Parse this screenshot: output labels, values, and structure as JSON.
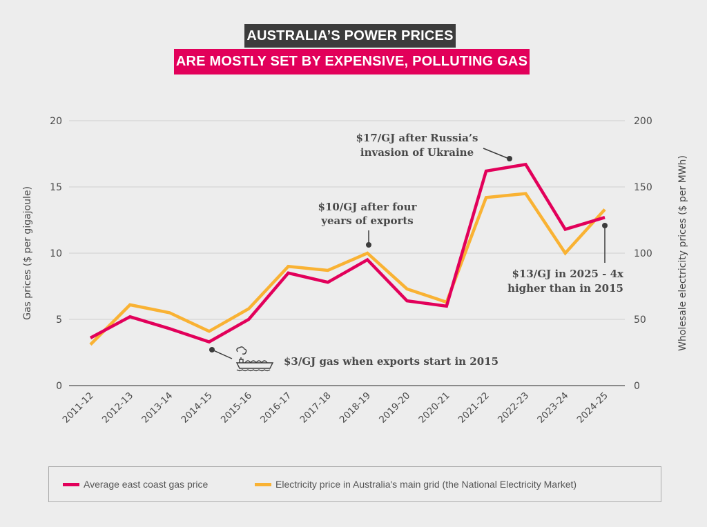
{
  "title": {
    "line1": "AUSTRALIA’S POWER PRICES",
    "line2": "ARE MOSTLY SET BY EXPENSIVE, POLLUTING GAS"
  },
  "colors": {
    "gas": "#e2005a",
    "electricity": "#f9b233",
    "title_dark": "#3c3c3c",
    "title_pink": "#e2005a",
    "text": "#4a4a4a",
    "grid": "#cfcfcf"
  },
  "legend": {
    "gas_label": "Average east coast gas price",
    "electricity_label": "Electricity price in Australia's main grid (the National Electricity Market)"
  },
  "annotations": {
    "exports_start": "$3/GJ gas when exports start in 2015",
    "four_years_line1": "$10/GJ after four",
    "four_years_line2": "years of exports",
    "russia_line1": "$17/GJ after Russia’s",
    "russia_line2": "invasion of Ukraine",
    "in_2025_line1": "$13/GJ in 2025 - 4x",
    "in_2025_line2": "higher than in 2015",
    "ship_icon": "lng-tanker-ship-icon"
  },
  "chart_data": {
    "type": "line",
    "title": "AUSTRALIA’S POWER PRICES ARE MOSTLY SET BY EXPENSIVE, POLLUTING GAS",
    "categories": [
      "2011-12",
      "2012-13",
      "2013-14",
      "2014-15",
      "2015-16",
      "2016-17",
      "2017-18",
      "2018-19",
      "2019-20",
      "2020-21",
      "2021-22",
      "2022-23",
      "2023-24",
      "2024-25"
    ],
    "ylabel": "Gas prices ($ per gigajoule)",
    "y2label": "Wholesale electricity prices ($ per MWh)",
    "xlabel": "",
    "ylim": [
      0,
      20
    ],
    "y2lim": [
      0,
      200
    ],
    "yticks": [
      "0",
      "5",
      "10",
      "15",
      "20"
    ],
    "y2ticks": [
      "0",
      "50",
      "100",
      "150",
      "200"
    ],
    "grid": true,
    "legend_position": "bottom",
    "series": [
      {
        "name": "Average east coast gas price",
        "axis": "left",
        "values": [
          3.6,
          5.2,
          4.3,
          3.3,
          5.0,
          8.5,
          7.8,
          9.5,
          6.4,
          6.0,
          16.2,
          16.7,
          11.8,
          12.7
        ]
      },
      {
        "name": "Electricity price in Australia's main grid (the National Electricity Market)",
        "axis": "right",
        "values": [
          31,
          61,
          55,
          41,
          58,
          90,
          87,
          100,
          73,
          63,
          142,
          145,
          100,
          133
        ]
      }
    ]
  }
}
